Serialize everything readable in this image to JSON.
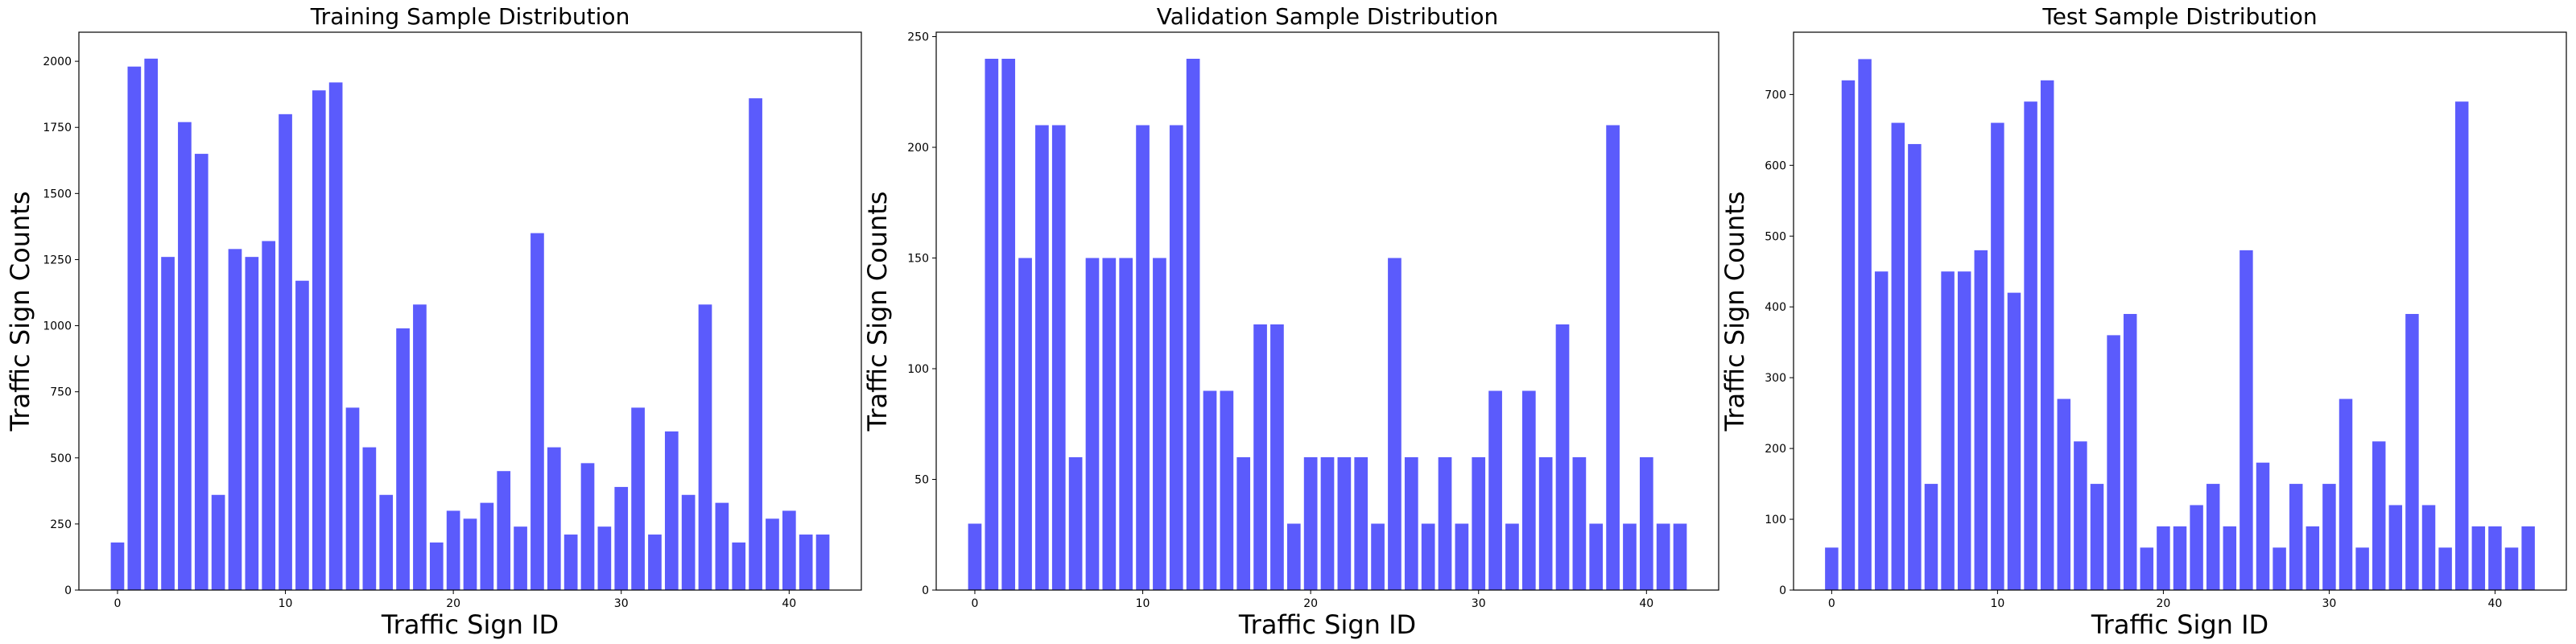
{
  "chart_data": [
    {
      "type": "bar",
      "title": "Training Sample Distribution",
      "xlabel": "Traffic Sign ID",
      "ylabel": "Traffic Sign Counts",
      "color": "#5b5bfc",
      "xlim": [
        -2.3,
        44.3
      ],
      "ylim": [
        0,
        2110
      ],
      "xticks": [
        0,
        10,
        20,
        30,
        40
      ],
      "yticks": [
        0,
        250,
        500,
        750,
        1000,
        1250,
        1500,
        1750,
        2000
      ],
      "x": [
        0,
        1,
        2,
        3,
        4,
        5,
        6,
        7,
        8,
        9,
        10,
        11,
        12,
        13,
        14,
        15,
        16,
        17,
        18,
        19,
        20,
        21,
        22,
        23,
        24,
        25,
        26,
        27,
        28,
        29,
        30,
        31,
        32,
        33,
        34,
        35,
        36,
        37,
        38,
        39,
        40,
        41,
        42
      ],
      "values": [
        180,
        1980,
        2010,
        1260,
        1770,
        1650,
        360,
        1290,
        1260,
        1320,
        1800,
        1170,
        1890,
        1920,
        690,
        540,
        360,
        990,
        1080,
        180,
        300,
        270,
        330,
        450,
        240,
        1350,
        540,
        210,
        480,
        240,
        390,
        690,
        210,
        600,
        360,
        1080,
        330,
        180,
        1860,
        270,
        300,
        210,
        210
      ]
    },
    {
      "type": "bar",
      "title": "Validation Sample Distribution",
      "xlabel": "Traffic Sign ID",
      "ylabel": "Traffic Sign Counts",
      "color": "#5b5bfc",
      "xlim": [
        -2.3,
        44.3
      ],
      "ylim": [
        0,
        252
      ],
      "xticks": [
        0,
        10,
        20,
        30,
        40
      ],
      "yticks": [
        0,
        50,
        100,
        150,
        200,
        250
      ],
      "x": [
        0,
        1,
        2,
        3,
        4,
        5,
        6,
        7,
        8,
        9,
        10,
        11,
        12,
        13,
        14,
        15,
        16,
        17,
        18,
        19,
        20,
        21,
        22,
        23,
        24,
        25,
        26,
        27,
        28,
        29,
        30,
        31,
        32,
        33,
        34,
        35,
        36,
        37,
        38,
        39,
        40,
        41,
        42
      ],
      "values": [
        30,
        240,
        240,
        150,
        210,
        210,
        60,
        150,
        150,
        150,
        210,
        150,
        210,
        240,
        90,
        90,
        60,
        120,
        120,
        30,
        60,
        60,
        60,
        60,
        30,
        150,
        60,
        30,
        60,
        30,
        60,
        90,
        30,
        90,
        60,
        120,
        60,
        30,
        210,
        30,
        60,
        30,
        30
      ]
    },
    {
      "type": "bar",
      "title": "Test Sample Distribution",
      "xlabel": "Traffic Sign ID",
      "ylabel": "Traffic Sign Counts",
      "color": "#5b5bfc",
      "xlim": [
        -2.3,
        44.3
      ],
      "ylim": [
        0,
        788
      ],
      "xticks": [
        0,
        10,
        20,
        30,
        40
      ],
      "yticks": [
        0,
        100,
        200,
        300,
        400,
        500,
        600,
        700
      ],
      "x": [
        0,
        1,
        2,
        3,
        4,
        5,
        6,
        7,
        8,
        9,
        10,
        11,
        12,
        13,
        14,
        15,
        16,
        17,
        18,
        19,
        20,
        21,
        22,
        23,
        24,
        25,
        26,
        27,
        28,
        29,
        30,
        31,
        32,
        33,
        34,
        35,
        36,
        37,
        38,
        39,
        40,
        41,
        42
      ],
      "values": [
        60,
        720,
        750,
        450,
        660,
        630,
        150,
        450,
        450,
        480,
        660,
        420,
        690,
        720,
        270,
        210,
        150,
        360,
        390,
        60,
        90,
        90,
        120,
        150,
        90,
        480,
        180,
        60,
        150,
        90,
        150,
        270,
        60,
        210,
        120,
        390,
        120,
        60,
        690,
        90,
        90,
        60,
        90
      ]
    }
  ]
}
